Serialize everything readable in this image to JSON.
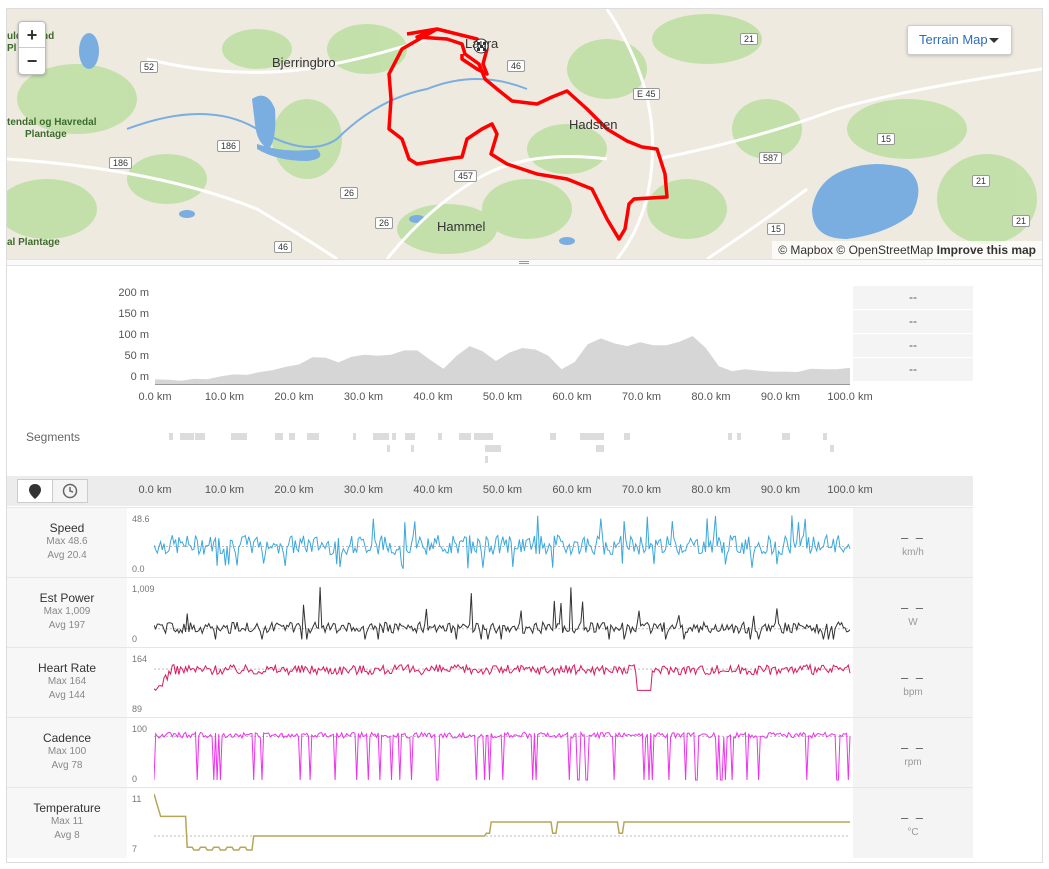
{
  "map": {
    "zoom_in": "+",
    "zoom_out": "−",
    "terrain_button": "Terrain Map",
    "attribution_mapbox": "© Mapbox",
    "attribution_osm": "© OpenStreetMap",
    "attribution_improve": "Improve this map",
    "cities": [
      "Bjerringbro",
      "Hadsten",
      "Hammel",
      "Laura"
    ],
    "parks": [
      "ulden and",
      "Pl",
      "tendal og Havredal",
      "Plantage",
      "al Plantage"
    ],
    "roads": [
      "52",
      "186",
      "186",
      "26",
      "26",
      "46",
      "457",
      "46",
      "21",
      "E 45",
      "15",
      "587",
      "15",
      "21",
      "21",
      "46"
    ],
    "colors": {
      "route": "#ff0000",
      "water": "#7aaee0",
      "forest": "#b8dca0",
      "land": "#efeae0"
    }
  },
  "elevation": {
    "y_ticks": [
      "200 m",
      "150 m",
      "100 m",
      "50 m",
      "0 m"
    ],
    "x_ticks": [
      "0.0 km",
      "10.0 km",
      "20.0 km",
      "30.0 km",
      "40.0 km",
      "50.0 km",
      "60.0 km",
      "70.0 km",
      "80.0 km",
      "90.0 km",
      "100.0 km"
    ],
    "side_values": [
      "--",
      "--",
      "--",
      "--"
    ],
    "profile_m": [
      15,
      12,
      8,
      10,
      14,
      18,
      20,
      24,
      28,
      30,
      35,
      45,
      58,
      55,
      50,
      60,
      62,
      58,
      65,
      72,
      70,
      55,
      35,
      60,
      78,
      72,
      50,
      65,
      80,
      75,
      60,
      30,
      50,
      85,
      95,
      90,
      82,
      88,
      80,
      85,
      90,
      100,
      80,
      40,
      28,
      30,
      32,
      28,
      26,
      30,
      35,
      32,
      30,
      38
    ]
  },
  "segments": {
    "label": "Segments"
  },
  "streams": {
    "x_ticks": [
      "0.0 km",
      "10.0 km",
      "20.0 km",
      "30.0 km",
      "40.0 km",
      "50.0 km",
      "60.0 km",
      "70.0 km",
      "80.0 km",
      "90.0 km",
      "100.0 km"
    ],
    "rows": [
      {
        "name": "Speed",
        "max": "Max 48.6",
        "avg": "Avg 20.4",
        "ymax": "48.6",
        "ymin": "0.0",
        "value": "– –",
        "unit": "km/h",
        "color": "#3ba7dc",
        "avg_frac": 0.42,
        "kind": "speed"
      },
      {
        "name": "Est Power",
        "max": "Max 1,009",
        "avg": "Avg 197",
        "ymax": "1,009",
        "ymin": "0",
        "value": "– –",
        "unit": "W",
        "color": "#333333",
        "avg_frac": 0.2,
        "kind": "power"
      },
      {
        "name": "Heart Rate",
        "max": "Max 164",
        "avg": "Avg 144",
        "ymax": "164",
        "ymin": "89",
        "value": "– –",
        "unit": "bpm",
        "color": "#d81b60",
        "avg_frac": 0.73,
        "kind": "hr"
      },
      {
        "name": "Cadence",
        "max": "Max 100",
        "avg": "Avg 78",
        "ymax": "100",
        "ymin": "0",
        "value": "– –",
        "unit": "rpm",
        "color": "#ee33ee",
        "avg_frac": 0.78,
        "kind": "cad"
      },
      {
        "name": "Temperature",
        "max": "Max 11",
        "avg": "Avg 8",
        "ymax": "11",
        "ymin": "7",
        "value": "– –",
        "unit": "°C",
        "color": "#b7a55a",
        "avg_frac": 0.25,
        "kind": "temp"
      }
    ]
  }
}
